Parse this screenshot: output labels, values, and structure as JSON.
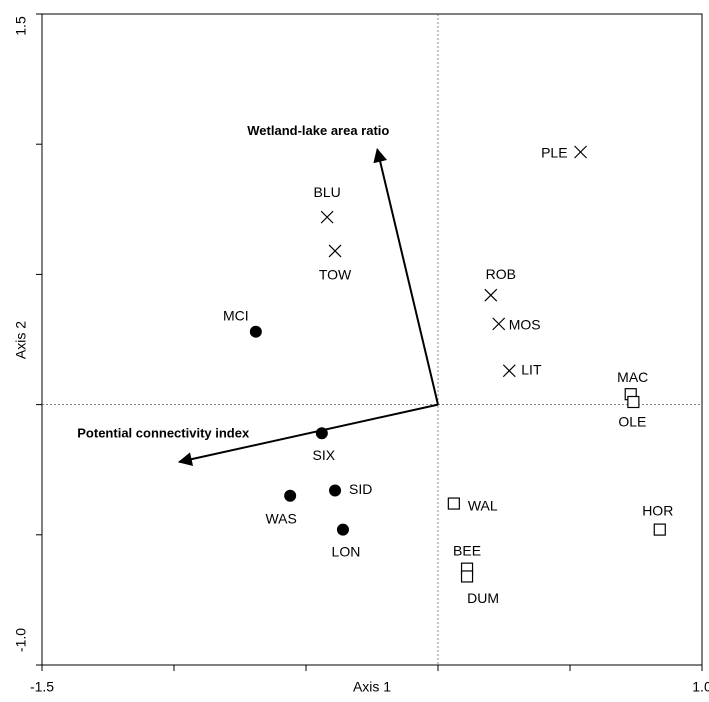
{
  "chart_data": {
    "type": "biplot",
    "x_label": "Axis 1",
    "y_label": "Axis 2",
    "xlim": [
      -1.5,
      1.0
    ],
    "ylim": [
      -1.0,
      1.5
    ],
    "xticks": [
      -1.5,
      {
        "value": 1,
        "label": "1.0"
      }
    ],
    "xminorticks": [
      -1,
      -0.5,
      0,
      0.5
    ],
    "yticks": [
      {
        "value": -1,
        "label": "-1.0"
      },
      1.5
    ],
    "yminorticks": [
      -0.5,
      0,
      0.5,
      1
    ],
    "series": [
      {
        "marker": "x",
        "color": "#000000",
        "labels": [
          "PLE",
          "BLU",
          "TOW",
          "ROB",
          "MOS",
          "LIT"
        ],
        "x": [
          0.54,
          -0.42,
          -0.39,
          0.2,
          0.23,
          0.27
        ],
        "y": [
          0.97,
          0.72,
          0.59,
          0.42,
          0.31,
          0.13
        ]
      },
      {
        "marker": "circle",
        "color": "#000000",
        "labels": [
          "MCI",
          "SIX",
          "SID",
          "WAS",
          "LON"
        ],
        "x": [
          -0.69,
          -0.44,
          -0.39,
          -0.56,
          -0.36
        ],
        "y": [
          0.28,
          -0.11,
          -0.33,
          -0.35,
          -0.48
        ]
      },
      {
        "marker": "square",
        "color": "#000000",
        "labels": [
          "MAC",
          "OLE",
          "WAL",
          "HOR",
          "BEE",
          "DUM"
        ],
        "x": [
          0.73,
          0.74,
          0.06,
          0.84,
          0.11,
          0.11
        ],
        "y": [
          0.04,
          0.01,
          -0.38,
          -0.48,
          -0.63,
          -0.66
        ]
      }
    ],
    "arrows": [
      {
        "label": "Wetland-lake area ratio",
        "x": -0.23,
        "y": 0.98
      },
      {
        "label": "Potential connectivity index",
        "x": -0.98,
        "y": -0.22
      }
    ]
  }
}
